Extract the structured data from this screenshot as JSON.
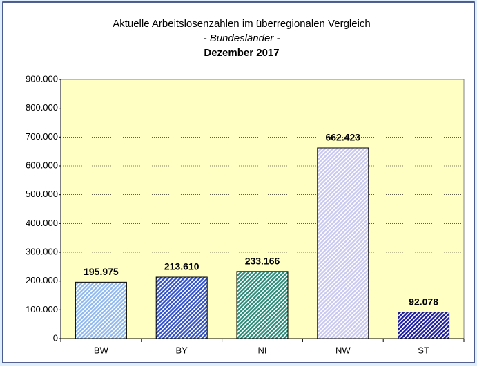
{
  "chart_data": {
    "type": "bar",
    "title": "Aktuelle Arbeitslosenzahlen im überregionalen Vergleich",
    "subtitle": "- Bundesländer -",
    "period": "Dezember 2017",
    "categories": [
      "BW",
      "BY",
      "NI",
      "NW",
      "ST"
    ],
    "values": [
      195975,
      213610,
      233166,
      662423,
      92078
    ],
    "value_labels": [
      "195.975",
      "213.610",
      "233.166",
      "662.423",
      "92.078"
    ],
    "colors": [
      "#8fb8ee",
      "#3050c8",
      "#2a8a78",
      "#c8c8f0",
      "#1a1aa0"
    ],
    "ylim": [
      0,
      900000
    ],
    "yticks": [
      0,
      {
        "value": 100000,
        "label": "100.000"
      },
      {
        "value": 200000,
        "label": "200.000"
      },
      {
        "value": 300000,
        "label": "300.000"
      },
      {
        "value": 400000,
        "label": "400.000"
      },
      {
        "value": 500000,
        "label": "500.000"
      },
      {
        "value": 600000,
        "label": "600.000"
      },
      {
        "value": 700000,
        "label": "700.000"
      },
      {
        "value": 800000,
        "label": "800.000"
      },
      {
        "value": 900000,
        "label": "900.000"
      }
    ],
    "grid": true
  }
}
